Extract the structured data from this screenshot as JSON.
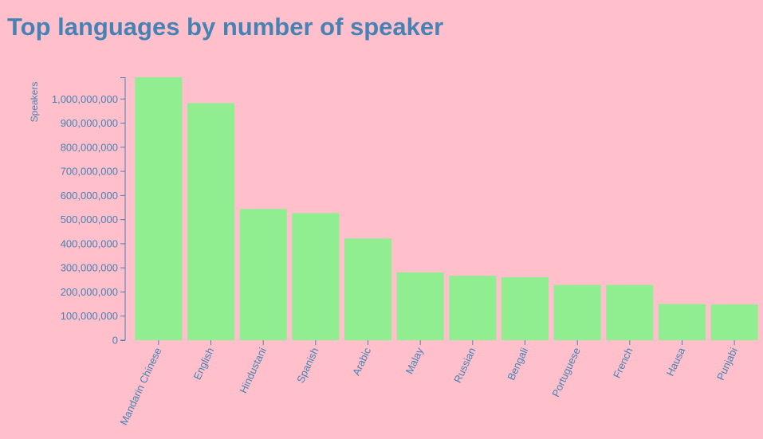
{
  "page": {
    "title": "Top languages by number of speaker"
  },
  "colors": {
    "background": "#ffc0cb",
    "bar": "#90ee90",
    "text": "#4682b4"
  },
  "chart_data": {
    "type": "bar",
    "title": "Top languages by number of speaker",
    "xlabel": "",
    "ylabel": "Speakers",
    "categories": [
      "Mandarin Chinese",
      "English",
      "Hindustani",
      "Spanish",
      "Arabic",
      "Malay",
      "Russian",
      "Bengali",
      "Portuguese",
      "French",
      "Hausa",
      "Punjabi"
    ],
    "values": [
      1090000000,
      983000000,
      544000000,
      527000000,
      422000000,
      281000000,
      267000000,
      261000000,
      229000000,
      229000000,
      150000000,
      148000000
    ],
    "ylim": [
      0,
      1090000000
    ],
    "yticks": [
      0,
      100000000,
      200000000,
      300000000,
      400000000,
      500000000,
      600000000,
      700000000,
      800000000,
      900000000,
      1000000000
    ],
    "ytick_labels": [
      "0",
      "100,000,000",
      "200,000,000",
      "300,000,000",
      "400,000,000",
      "500,000,000",
      "600,000,000",
      "700,000,000",
      "800,000,000",
      "900,000,000",
      "1,000,000,000"
    ],
    "grid": false,
    "legend": "none"
  }
}
